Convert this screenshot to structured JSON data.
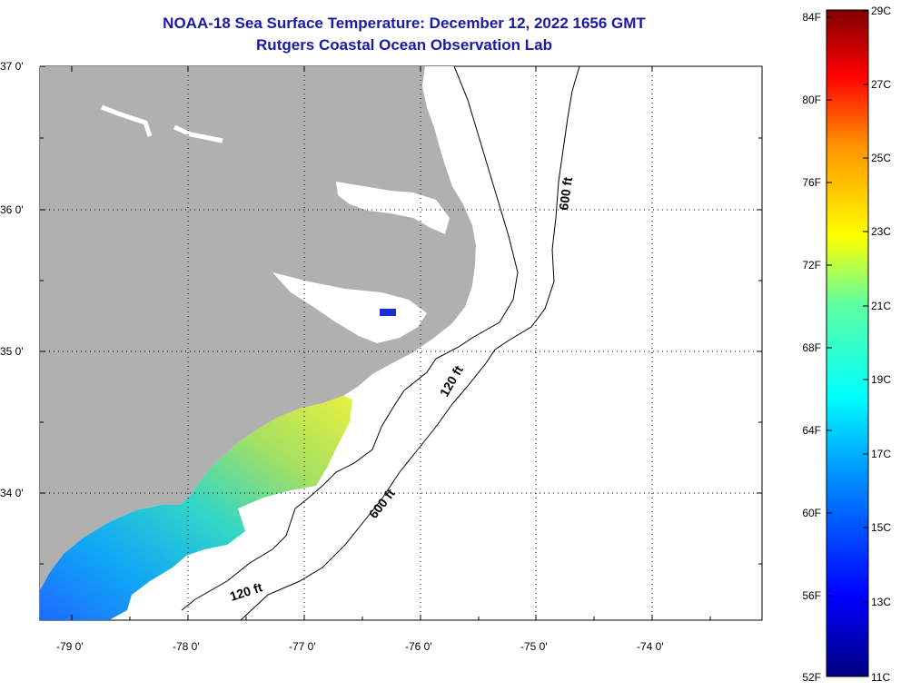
{
  "title": {
    "line1": "NOAA-18 Sea Surface Temperature:  December 12, 2022 1656 GMT",
    "line2": "Rutgers Coastal Ocean Observation Lab"
  },
  "axes": {
    "lat_labels": [
      "37 0'",
      "36 0'",
      "35 0'",
      "34 0'"
    ],
    "lon_labels": [
      "-79 0'",
      "-78 0'",
      "-77 0'",
      "-76 0'",
      "-75 0'",
      "-74 0'"
    ]
  },
  "contours": {
    "label_600_north": "600 ft",
    "label_120_north": "120 ft",
    "label_600_south": "600 ft",
    "label_120_south": "120 ft"
  },
  "colorbar": {
    "fahrenheit_labels": [
      "84F",
      "80F",
      "76F",
      "72F",
      "68F",
      "64F",
      "60F",
      "56F",
      "52F"
    ],
    "celsius_labels": [
      "29C",
      "27C",
      "25C",
      "23C",
      "21C",
      "19C",
      "17C",
      "15C",
      "13C",
      "11C"
    ]
  },
  "colors": {
    "land": "#b0b0b0",
    "title": "#1a1aa6",
    "grid": "#000000"
  }
}
